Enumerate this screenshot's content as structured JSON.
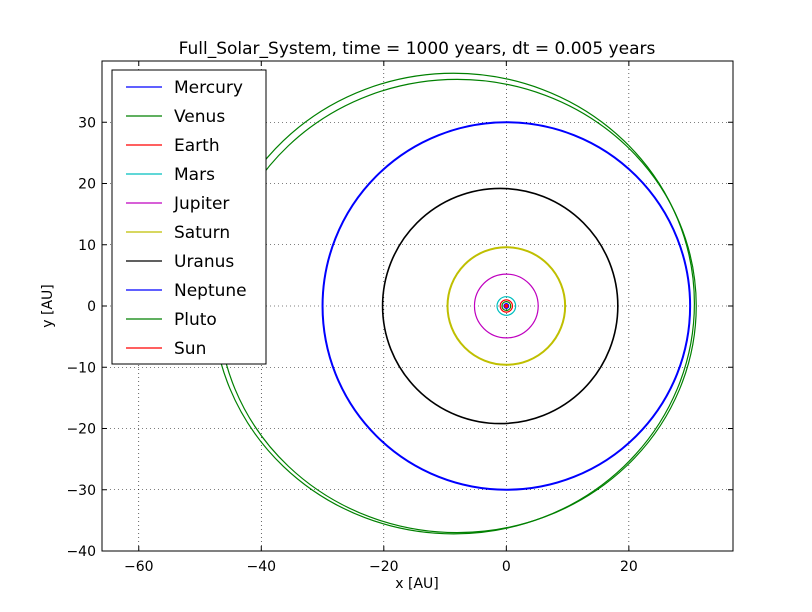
{
  "chart_data": {
    "type": "line",
    "title": "Full_Solar_System, time = 1000 years, dt = 0.005 years",
    "xlabel": "x [AU]",
    "ylabel": "y [AU]",
    "xlim": [
      -66,
      37
    ],
    "ylim": [
      -40,
      40
    ],
    "xticks": [
      -60,
      -40,
      -20,
      0,
      20
    ],
    "yticks": [
      -40,
      -30,
      -20,
      -10,
      0,
      10,
      20,
      30
    ],
    "xtick_labels": [
      "−60",
      "−40",
      "−20",
      "0",
      "20"
    ],
    "ytick_labels": [
      "−40",
      "−30",
      "−20",
      "−10",
      "0",
      "10",
      "20",
      "30"
    ],
    "grid": true,
    "legend_position": "top-left",
    "series": [
      {
        "name": "Mercury",
        "color": "#0000ff",
        "cx": 0,
        "cy": 0,
        "rx": 0.39,
        "ry": 0.39
      },
      {
        "name": "Venus",
        "color": "#008000",
        "cx": 0,
        "cy": 0,
        "rx": 0.72,
        "ry": 0.72
      },
      {
        "name": "Earth",
        "color": "#ff0000",
        "cx": 0,
        "cy": 0,
        "rx": 1.0,
        "ry": 1.0
      },
      {
        "name": "Mars",
        "color": "#00bfbf",
        "cx": 0,
        "cy": 0,
        "rx": 1.52,
        "ry": 1.52
      },
      {
        "name": "Jupiter",
        "color": "#bf00bf",
        "cx": 0,
        "cy": 0,
        "rx": 5.2,
        "ry": 5.2
      },
      {
        "name": "Saturn",
        "color": "#bfbf00",
        "cx": 0,
        "cy": 0,
        "rx": 9.6,
        "ry": 9.6
      },
      {
        "name": "Uranus",
        "color": "#000000",
        "cx": -1,
        "cy": 0,
        "rx": 19.2,
        "ry": 19.2
      },
      {
        "name": "Neptune",
        "color": "#0000ff",
        "cx": 0,
        "cy": 0,
        "rx": 30.0,
        "ry": 30.0
      },
      {
        "name": "Pluto",
        "color": "#008000",
        "cx": -8,
        "cy": 0,
        "rx": 39.0,
        "ry": 37.0
      },
      {
        "name": "Sun",
        "color": "#ff0000",
        "cx": 0,
        "cy": 0,
        "rx": 0.05,
        "ry": 0.05
      }
    ]
  }
}
